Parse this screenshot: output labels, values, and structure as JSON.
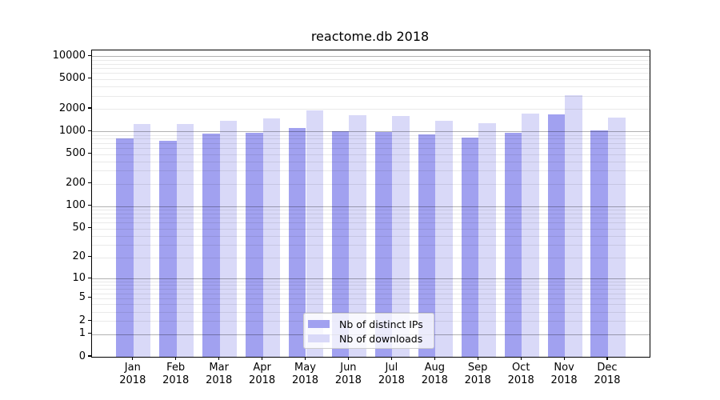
{
  "chart": {
    "title": "reactome.db 2018"
  },
  "chart_data": {
    "type": "bar",
    "title": "reactome.db 2018",
    "categories": [
      "Jan 2018",
      "Feb 2018",
      "Mar 2018",
      "Apr 2018",
      "May 2018",
      "Jun 2018",
      "Jul 2018",
      "Aug 2018",
      "Sep 2018",
      "Oct 2018",
      "Nov 2018",
      "Dec 2018"
    ],
    "series": [
      {
        "name": "Nb of distinct IPs",
        "color": "#a1a1f0",
        "values": [
          815,
          750,
          940,
          960,
          1100,
          1015,
          975,
          920,
          820,
          950,
          1670,
          1030
        ]
      },
      {
        "name": "Nb of downloads",
        "color": "#d9d9f8",
        "values": [
          1260,
          1260,
          1385,
          1480,
          1920,
          1650,
          1605,
          1385,
          1300,
          1720,
          3050,
          1530
        ]
      }
    ],
    "xlabel": "",
    "ylabel": "",
    "yscale": "log1p",
    "y_ticks": [
      0,
      1,
      2,
      5,
      10,
      20,
      50,
      100,
      200,
      500,
      1000,
      2000,
      5000,
      10000
    ],
    "y_major_gridlines": [
      1,
      10,
      100,
      1000,
      10000
    ],
    "ylim": [
      0,
      12000
    ],
    "grid": true,
    "legend_position": "lower center",
    "colors": {
      "major_grid": "#b3b3b3",
      "minor_grid": "#ebebeb",
      "spine": "#000000",
      "background": "#ffffff"
    }
  }
}
